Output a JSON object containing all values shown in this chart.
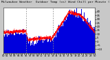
{
  "title": "Milwaukee Weather  Outdoor Temp (vs) Wind Chill per Minute (Last 24 Hours)",
  "bg_color": "#c8c8c8",
  "plot_bg_color": "#ffffff",
  "bar_color": "#0000dd",
  "line_color": "#ff0000",
  "n_points": 1440,
  "y_min": -15,
  "y_max": 45,
  "y_ticks": [
    40,
    35,
    30,
    25,
    20,
    15,
    10,
    5,
    0,
    -5,
    -10
  ],
  "vline_positions": [
    360,
    780
  ],
  "title_fontsize": 3.2,
  "tick_fontsize": 2.8,
  "seed": 42
}
